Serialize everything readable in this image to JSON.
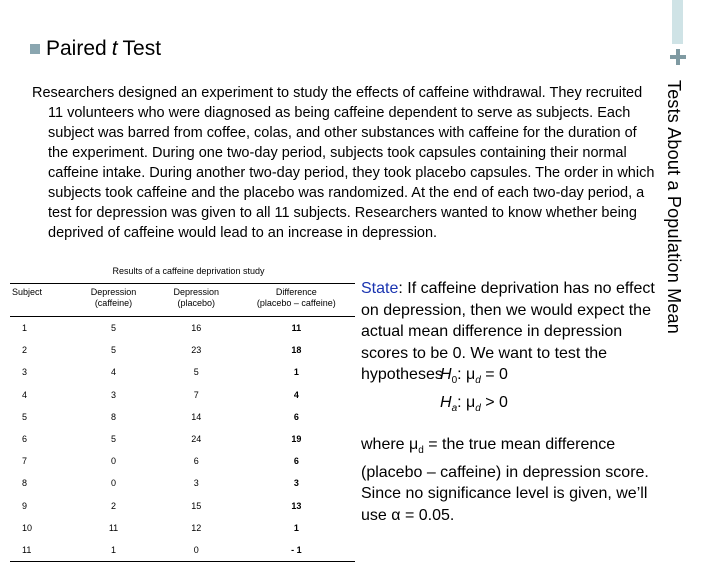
{
  "slide": {
    "title_before": "Paired",
    "title_italic": "t",
    "title_after": "Test",
    "side_title": "Tests About a Population Mean"
  },
  "intro": "Researchers designed an experiment to study the effects of caffeine withdrawal. They recruited 11 volunteers who were diagnosed as being caffeine dependent to serve as subjects. Each subject was barred from coffee, colas, and other substances with caffeine for the duration of the experiment. During one two-day period, subjects took capsules containing their normal caffeine intake. During another two-day period, they took placebo capsules. The order in which subjects took caffeine and the placebo was randomized. At the end of each two-day period, a test for depression was given to all 11 subjects. Researchers wanted to know whether being deprived of caffeine would lead to an increase in depression.",
  "table": {
    "caption": "Results of a caffeine deprivation study",
    "headers": [
      "Subject",
      "Depression",
      "Depression",
      "Difference"
    ],
    "subheaders": [
      "",
      "(caffeine)",
      "(placebo)",
      "(placebo – caffeine)"
    ],
    "rows": [
      [
        "1",
        "5",
        "16",
        "11"
      ],
      [
        "2",
        "5",
        "23",
        "18"
      ],
      [
        "3",
        "4",
        "5",
        "1"
      ],
      [
        "4",
        "3",
        "7",
        "4"
      ],
      [
        "5",
        "8",
        "14",
        "6"
      ],
      [
        "6",
        "5",
        "24",
        "19"
      ],
      [
        "7",
        "0",
        "6",
        "6"
      ],
      [
        "8",
        "0",
        "3",
        "3"
      ],
      [
        "9",
        "2",
        "15",
        "13"
      ],
      [
        "10",
        "11",
        "12",
        "1"
      ],
      [
        "11",
        "1",
        "0",
        "- 1"
      ]
    ]
  },
  "state": {
    "label": "State",
    "text": ": If caffeine deprivation has no effect on depression, then we would expect the actual mean difference in depression scores to be 0. We want to test the hypotheses",
    "h0_letter": "H",
    "h0_sub": "0",
    "h0_rest": ": μ",
    "h0_mu_sub": "d",
    "h0_value": " = 0",
    "ha_letter": "H",
    "ha_sub": "a",
    "ha_rest": ": μ",
    "ha_mu_sub": "d",
    "ha_value": " > 0",
    "where_1": "where μ",
    "where_sub": "d",
    "where_2": " = the true mean difference (placebo – caffeine) in depression score.  Since no significance level is given, we’ll use α = 0.05."
  },
  "colors": {
    "state_label": "#1a34b0",
    "accent": "#8aa6b0"
  }
}
